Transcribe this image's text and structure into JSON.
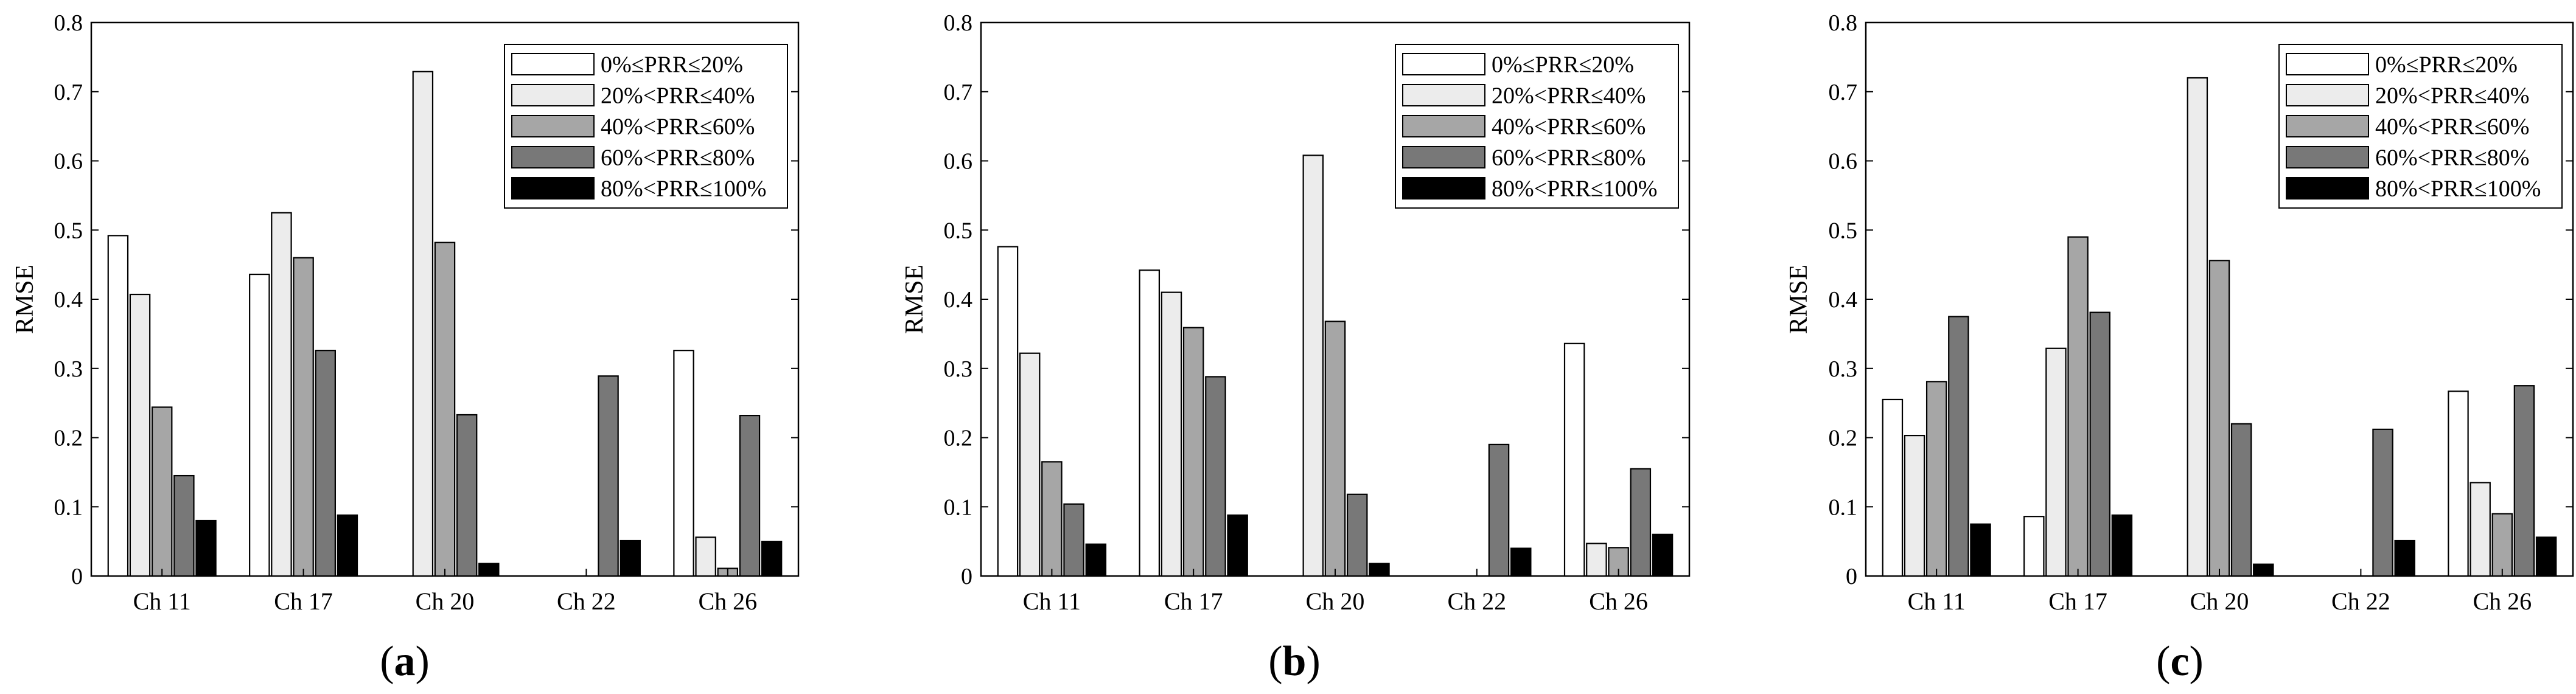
{
  "chart_data": [
    {
      "type": "bar",
      "panel_label": "a",
      "categories": [
        "Ch 11",
        "Ch 17",
        "Ch 20",
        "Ch 22",
        "Ch 26"
      ],
      "ylabel": "RMSE",
      "xlabel": "",
      "ylim": [
        0,
        0.8
      ],
      "yticks": [
        "0",
        "0.1",
        "0.2",
        "0.3",
        "0.4",
        "0.5",
        "0.6",
        "0.7",
        "0.8"
      ],
      "legend_position": "top-right",
      "series": [
        {
          "name": "0%≤PRR≤20%",
          "color": "#ffffff",
          "values": [
            0.492,
            0.436,
            0,
            0,
            0.326
          ]
        },
        {
          "name": "20%<PRR≤40%",
          "color": "#ececec",
          "values": [
            0.407,
            0.525,
            0.729,
            0,
            0.056
          ]
        },
        {
          "name": "40%<PRR≤60%",
          "color": "#a6a6a6",
          "values": [
            0.244,
            0.46,
            0.482,
            0,
            0.011
          ]
        },
        {
          "name": "60%<PRR≤80%",
          "color": "#787878",
          "values": [
            0.145,
            0.326,
            0.233,
            0.289,
            0.232
          ]
        },
        {
          "name": "80%<PRR≤100%",
          "color": "#000000",
          "values": [
            0.08,
            0.088,
            0.018,
            0.051,
            0.05
          ]
        }
      ]
    },
    {
      "type": "bar",
      "panel_label": "b",
      "categories": [
        "Ch 11",
        "Ch 17",
        "Ch 20",
        "Ch 22",
        "Ch 26"
      ],
      "ylabel": "RMSE",
      "xlabel": "",
      "ylim": [
        0,
        0.8
      ],
      "yticks": [
        "0",
        "0.1",
        "0.2",
        "0.3",
        "0.4",
        "0.5",
        "0.6",
        "0.7",
        "0.8"
      ],
      "legend_position": "top-right",
      "series": [
        {
          "name": "0%≤PRR≤20%",
          "color": "#ffffff",
          "values": [
            0.476,
            0.442,
            0,
            0,
            0.336
          ]
        },
        {
          "name": "20%<PRR≤40%",
          "color": "#ececec",
          "values": [
            0.322,
            0.41,
            0.608,
            0,
            0.047
          ]
        },
        {
          "name": "40%<PRR≤60%",
          "color": "#a6a6a6",
          "values": [
            0.165,
            0.359,
            0.368,
            0,
            0.041
          ]
        },
        {
          "name": "60%<PRR≤80%",
          "color": "#787878",
          "values": [
            0.104,
            0.288,
            0.118,
            0.19,
            0.155
          ]
        },
        {
          "name": "80%<PRR≤100%",
          "color": "#000000",
          "values": [
            0.046,
            0.088,
            0.018,
            0.04,
            0.06
          ]
        }
      ]
    },
    {
      "type": "bar",
      "panel_label": "c",
      "categories": [
        "Ch 11",
        "Ch 17",
        "Ch 20",
        "Ch 22",
        "Ch 26"
      ],
      "ylabel": "RMSE",
      "xlabel": "",
      "ylim": [
        0,
        0.8
      ],
      "yticks": [
        "0",
        "0.1",
        "0.2",
        "0.3",
        "0.4",
        "0.5",
        "0.6",
        "0.7",
        "0.8"
      ],
      "legend_position": "top-right",
      "series": [
        {
          "name": "0%≤PRR≤20%",
          "color": "#ffffff",
          "values": [
            0.255,
            0.086,
            0,
            0,
            0.267
          ]
        },
        {
          "name": "20%<PRR≤40%",
          "color": "#ececec",
          "values": [
            0.203,
            0.329,
            0.72,
            0,
            0.135
          ]
        },
        {
          "name": "40%<PRR≤60%",
          "color": "#a6a6a6",
          "values": [
            0.281,
            0.49,
            0.456,
            0,
            0.09
          ]
        },
        {
          "name": "60%<PRR≤80%",
          "color": "#787878",
          "values": [
            0.375,
            0.381,
            0.22,
            0.212,
            0.275
          ]
        },
        {
          "name": "80%<PRR≤100%",
          "color": "#000000",
          "values": [
            0.075,
            0.088,
            0.017,
            0.051,
            0.056
          ]
        }
      ]
    }
  ]
}
